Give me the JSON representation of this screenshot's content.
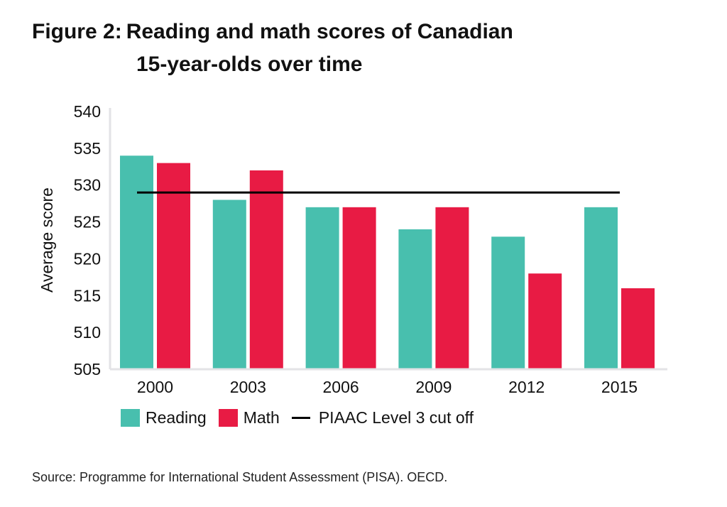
{
  "title": {
    "prefix": "Figure 2:",
    "line1": "Reading and math scores of Canadian",
    "line2": "15-year-olds over time"
  },
  "source": "Source: Programme for International Student Assessment (PISA). OECD.",
  "colors": {
    "reading": "#48bfae",
    "math": "#e81b44",
    "cutoff": "#000000",
    "axis": "#e3e3e6"
  },
  "chart_data": {
    "type": "bar",
    "title": "Reading and math scores of Canadian 15-year-olds over time",
    "xlabel": "",
    "ylabel": "Average score",
    "ylim": [
      505,
      540
    ],
    "yticks": [
      "505",
      "510",
      "515",
      "520",
      "525",
      "530",
      "535",
      "540"
    ],
    "categories": [
      "2000",
      "2003",
      "2006",
      "2009",
      "2012",
      "2015"
    ],
    "series": [
      {
        "name": "Reading",
        "values": [
          534,
          528,
          527,
          524,
          523,
          527
        ]
      },
      {
        "name": "Math",
        "values": [
          533,
          532,
          527,
          527,
          518,
          516
        ]
      }
    ],
    "reference_line": {
      "name": "PIAAC Level 3 cut off",
      "value": 529
    },
    "legend": "bottom"
  }
}
